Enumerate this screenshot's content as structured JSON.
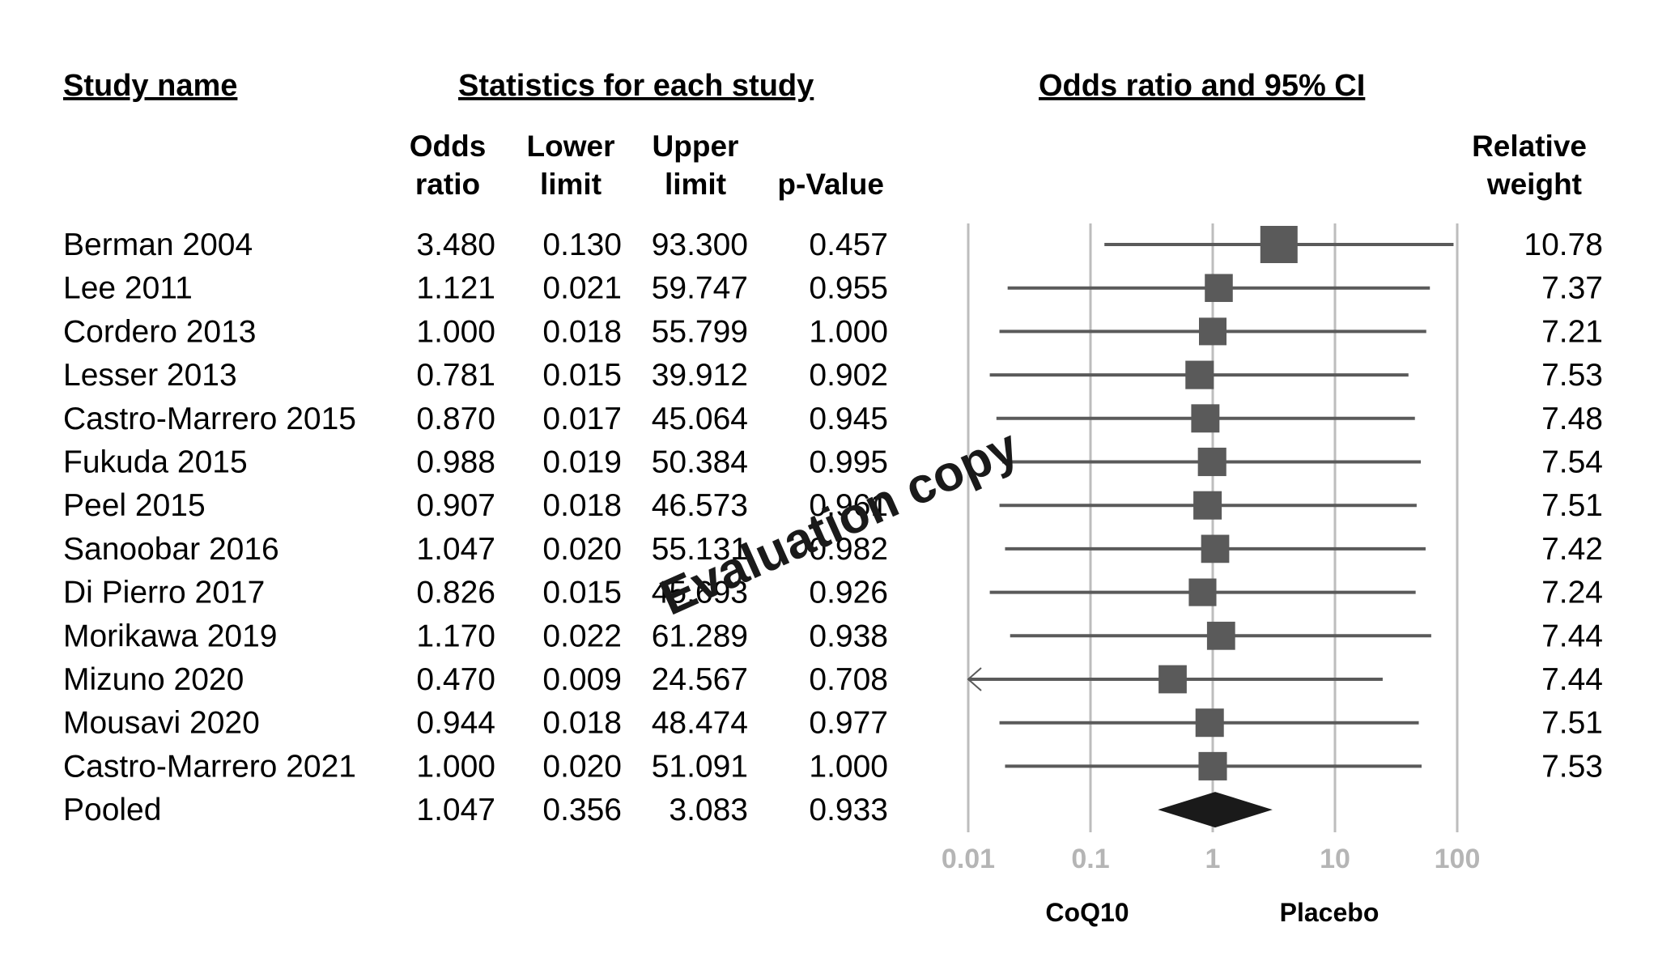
{
  "headers": {
    "study_name": "Study name",
    "statistics": "Statistics for each study",
    "plot": "Odds ratio and 95% CI",
    "col_or_1": "Odds",
    "col_or_2": "ratio",
    "col_lower_1": "Lower",
    "col_lower_2": "limit",
    "col_upper_1": "Upper",
    "col_upper_2": "limit",
    "col_p": "p-Value",
    "col_weight_1": "Relative",
    "col_weight_2": "weight"
  },
  "chart_data": {
    "type": "forest",
    "xscale": "log",
    "xlim": [
      0.01,
      100
    ],
    "x_ticks": [
      "0.01",
      "0.1",
      "1",
      "10",
      "100"
    ],
    "favours_left": "CoQ10",
    "favours_right": "Placebo",
    "gridlines": true,
    "studies": [
      {
        "name": "Berman 2004",
        "or": "3.480",
        "lower": "0.130",
        "upper": "93.300",
        "p": "0.457",
        "weight": "10.78"
      },
      {
        "name": "Lee 2011",
        "or": "1.121",
        "lower": "0.021",
        "upper": "59.747",
        "p": "0.955",
        "weight": "7.37"
      },
      {
        "name": "Cordero 2013",
        "or": "1.000",
        "lower": "0.018",
        "upper": "55.799",
        "p": "1.000",
        "weight": "7.21"
      },
      {
        "name": "Lesser 2013",
        "or": "0.781",
        "lower": "0.015",
        "upper": "39.912",
        "p": "0.902",
        "weight": "7.53"
      },
      {
        "name": "Castro-Marrero 2015",
        "or": "0.870",
        "lower": "0.017",
        "upper": "45.064",
        "p": "0.945",
        "weight": "7.48"
      },
      {
        "name": "Fukuda 2015",
        "or": "0.988",
        "lower": "0.019",
        "upper": "50.384",
        "p": "0.995",
        "weight": "7.54"
      },
      {
        "name": "Peel 2015",
        "or": "0.907",
        "lower": "0.018",
        "upper": "46.573",
        "p": "0.961",
        "weight": "7.51"
      },
      {
        "name": "Sanoobar 2016",
        "or": "1.047",
        "lower": "0.020",
        "upper": "55.131",
        "p": "0.982",
        "weight": "7.42"
      },
      {
        "name": "Di Pierro 2017",
        "or": "0.826",
        "lower": "0.015",
        "upper": "45.693",
        "p": "0.926",
        "weight": "7.24"
      },
      {
        "name": "Morikawa 2019",
        "or": "1.170",
        "lower": "0.022",
        "upper": "61.289",
        "p": "0.938",
        "weight": "7.44"
      },
      {
        "name": "Mizuno 2020",
        "or": "0.470",
        "lower": "0.009",
        "upper": "24.567",
        "p": "0.708",
        "weight": "7.44"
      },
      {
        "name": "Mousavi 2020",
        "or": "0.944",
        "lower": "0.018",
        "upper": "48.474",
        "p": "0.977",
        "weight": "7.51"
      },
      {
        "name": "Castro-Marrero 2021",
        "or": "1.000",
        "lower": "0.020",
        "upper": "51.091",
        "p": "1.000",
        "weight": "7.53"
      }
    ],
    "pooled": {
      "name": "Pooled",
      "or": "1.047",
      "lower": "0.356",
      "upper": "3.083",
      "p": "0.933"
    }
  },
  "watermark": "Evaluation copy",
  "colors": {
    "marker": "#5a5a5a",
    "ci_line": "#5a5a5a",
    "grid": "#bdbdbd",
    "diamond": "#1a1a1a",
    "tick_label": "#b5b5b5"
  }
}
